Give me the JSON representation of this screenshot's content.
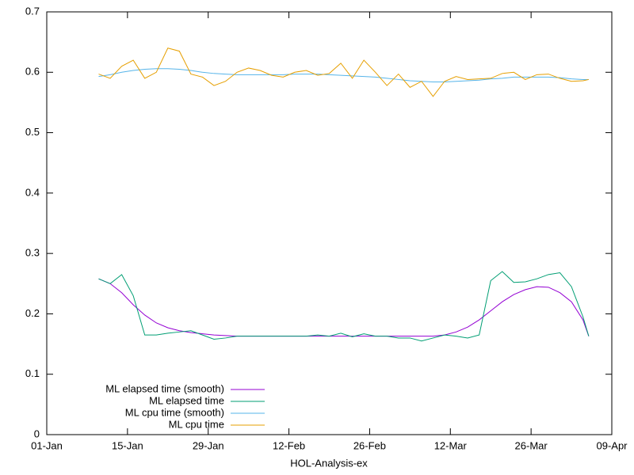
{
  "chart_data": {
    "type": "line",
    "xlabel": "HOL-Analysis-ex",
    "x": [
      9,
      11,
      13,
      15,
      17,
      19,
      21,
      23,
      25,
      27,
      29,
      31,
      33,
      35,
      37,
      39,
      41,
      43,
      45,
      47,
      49,
      51,
      53,
      55,
      57,
      59,
      61,
      63,
      65,
      67,
      69,
      71,
      73,
      75,
      77,
      79,
      81,
      83,
      85,
      87,
      89,
      91,
      93,
      94
    ],
    "xlim": [
      0,
      98
    ],
    "xticks": [
      {
        "value": 0,
        "label": "01-Jan"
      },
      {
        "value": 14,
        "label": "15-Jan"
      },
      {
        "value": 28,
        "label": "29-Jan"
      },
      {
        "value": 42,
        "label": "12-Feb"
      },
      {
        "value": 56,
        "label": "26-Feb"
      },
      {
        "value": 70,
        "label": "12-Mar"
      },
      {
        "value": 84,
        "label": "26-Mar"
      },
      {
        "value": 98,
        "label": "09-Apr"
      }
    ],
    "ylim": [
      0,
      0.7
    ],
    "yticks": [
      0,
      0.1,
      0.2,
      0.3,
      0.4,
      0.5,
      0.6,
      0.7
    ],
    "legend": "bottom-left",
    "series": [
      {
        "name": "ML elapsed time (smooth)",
        "color": "#9400d3",
        "values": [
          0.258,
          0.25,
          0.235,
          0.215,
          0.198,
          0.185,
          0.177,
          0.172,
          0.169,
          0.167,
          0.165,
          0.164,
          0.163,
          0.163,
          0.163,
          0.163,
          0.163,
          0.163,
          0.163,
          0.163,
          0.163,
          0.163,
          0.163,
          0.163,
          0.163,
          0.163,
          0.163,
          0.163,
          0.163,
          0.163,
          0.165,
          0.17,
          0.178,
          0.19,
          0.205,
          0.22,
          0.232,
          0.24,
          0.245,
          0.244,
          0.235,
          0.22,
          0.19,
          0.163
        ]
      },
      {
        "name": "ML elapsed time",
        "color": "#009e73",
        "values": [
          0.258,
          0.25,
          0.265,
          0.23,
          0.165,
          0.165,
          0.168,
          0.17,
          0.172,
          0.165,
          0.158,
          0.16,
          0.163,
          0.163,
          0.163,
          0.163,
          0.163,
          0.163,
          0.163,
          0.165,
          0.163,
          0.168,
          0.162,
          0.167,
          0.163,
          0.163,
          0.16,
          0.16,
          0.155,
          0.16,
          0.165,
          0.163,
          0.16,
          0.165,
          0.255,
          0.27,
          0.252,
          0.253,
          0.258,
          0.265,
          0.268,
          0.245,
          0.195,
          0.163
        ]
      },
      {
        "name": "ML cpu time (smooth)",
        "color": "#56b4e9",
        "values": [
          0.593,
          0.596,
          0.6,
          0.603,
          0.605,
          0.606,
          0.606,
          0.605,
          0.603,
          0.6,
          0.598,
          0.597,
          0.596,
          0.596,
          0.596,
          0.596,
          0.596,
          0.597,
          0.597,
          0.597,
          0.596,
          0.595,
          0.594,
          0.593,
          0.592,
          0.59,
          0.588,
          0.586,
          0.585,
          0.584,
          0.584,
          0.585,
          0.586,
          0.587,
          0.589,
          0.59,
          0.592,
          0.592,
          0.592,
          0.592,
          0.591,
          0.589,
          0.588,
          0.588
        ]
      },
      {
        "name": "ML cpu time",
        "color": "#e69f00",
        "values": [
          0.597,
          0.59,
          0.61,
          0.62,
          0.59,
          0.6,
          0.64,
          0.635,
          0.597,
          0.592,
          0.578,
          0.585,
          0.6,
          0.607,
          0.603,
          0.595,
          0.592,
          0.6,
          0.603,
          0.595,
          0.598,
          0.615,
          0.59,
          0.62,
          0.6,
          0.578,
          0.597,
          0.575,
          0.585,
          0.56,
          0.585,
          0.593,
          0.588,
          0.589,
          0.59,
          0.598,
          0.6,
          0.588,
          0.596,
          0.597,
          0.59,
          0.585,
          0.586,
          0.588
        ]
      }
    ]
  }
}
